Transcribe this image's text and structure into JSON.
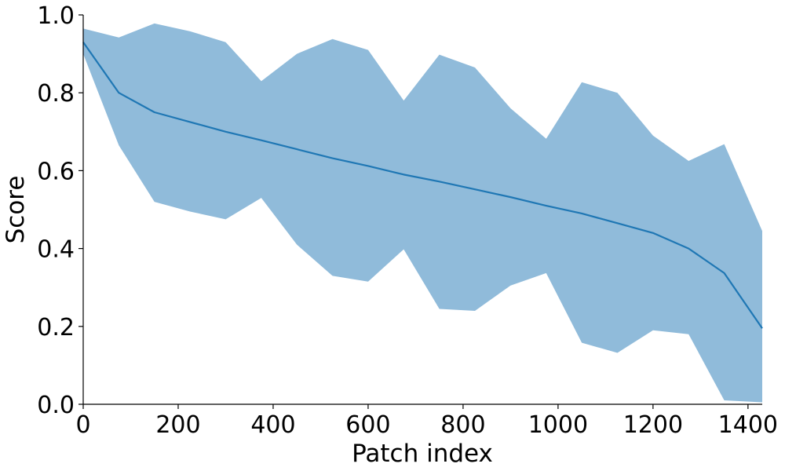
{
  "chart_data": {
    "type": "area",
    "title": "",
    "xlabel": "Patch index",
    "ylabel": "Score",
    "xlim": [
      0,
      1430
    ],
    "ylim": [
      0.0,
      1.0
    ],
    "xticks": [
      0,
      200,
      400,
      600,
      800,
      1000,
      1200,
      1400
    ],
    "xtick_labels": [
      "0",
      "200",
      "400",
      "600",
      "800",
      "1000",
      "1200",
      "1400"
    ],
    "yticks": [
      0.0,
      0.2,
      0.4,
      0.6,
      0.8,
      1.0
    ],
    "ytick_labels": [
      "0.0",
      "0.2",
      "0.4",
      "0.6",
      "0.8",
      "1.0"
    ],
    "grid": false,
    "x": [
      0,
      75,
      150,
      225,
      300,
      375,
      450,
      525,
      600,
      675,
      750,
      825,
      900,
      975,
      1050,
      1125,
      1200,
      1275,
      1350,
      1430
    ],
    "series": [
      {
        "values": [
          0.93,
          0.8,
          0.75,
          0.725,
          0.7,
          0.678,
          0.655,
          0.632,
          0.612,
          0.59,
          0.572,
          0.552,
          0.532,
          0.51,
          0.49,
          0.465,
          0.44,
          0.4,
          0.337,
          0.195
        ],
        "lower": [
          0.9,
          0.665,
          0.52,
          0.495,
          0.475,
          0.53,
          0.41,
          0.33,
          0.315,
          0.398,
          0.245,
          0.24,
          0.305,
          0.337,
          0.158,
          0.132,
          0.19,
          0.18,
          0.01,
          0.005
        ],
        "upper": [
          0.965,
          0.942,
          0.978,
          0.958,
          0.93,
          0.83,
          0.9,
          0.938,
          0.91,
          0.78,
          0.898,
          0.865,
          0.76,
          0.682,
          0.827,
          0.8,
          0.69,
          0.625,
          0.668,
          0.445
        ],
        "line_color": "#1f77b4",
        "band_color": "#90bbda"
      }
    ]
  }
}
